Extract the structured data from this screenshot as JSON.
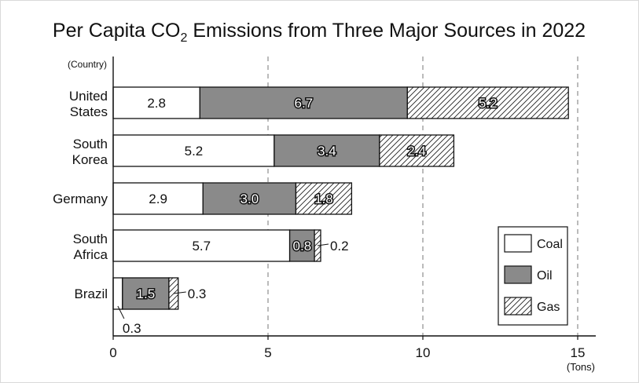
{
  "chart_data": {
    "type": "bar",
    "orientation": "horizontal",
    "stacked": true,
    "title_parts": [
      "Per Capita CO",
      "2",
      " Emissions from Three Major Sources in 2022"
    ],
    "y_axis_label": "(Country)",
    "x_unit_label": "(Tons)",
    "xlim": [
      0,
      15
    ],
    "x_ticks": [
      0,
      5,
      10,
      15
    ],
    "grid": "dashed vertical at 5, 10, 15",
    "legend_position": "bottom-right",
    "categories": [
      [
        "United",
        "States"
      ],
      [
        "South",
        "Korea"
      ],
      [
        "Germany"
      ],
      [
        "South",
        "Africa"
      ],
      [
        "Brazil"
      ]
    ],
    "series": [
      {
        "name": "Coal",
        "values": [
          2.8,
          5.2,
          2.9,
          5.7,
          0.3
        ],
        "labels": [
          "2.8",
          "5.2",
          "2.9",
          "5.7",
          "0.3"
        ],
        "fill": "#ffffff"
      },
      {
        "name": "Oil",
        "values": [
          6.7,
          3.4,
          3.0,
          0.8,
          1.5
        ],
        "labels": [
          "6.7",
          "3.4",
          "3.0",
          "0.8",
          "1.5"
        ],
        "fill": "#8a8a8a"
      },
      {
        "name": "Gas",
        "values": [
          5.2,
          2.4,
          1.8,
          0.2,
          0.3
        ],
        "labels": [
          "5.2",
          "2.4",
          "1.8",
          "0.2",
          "0.3"
        ],
        "fill": "hatch"
      }
    ]
  }
}
